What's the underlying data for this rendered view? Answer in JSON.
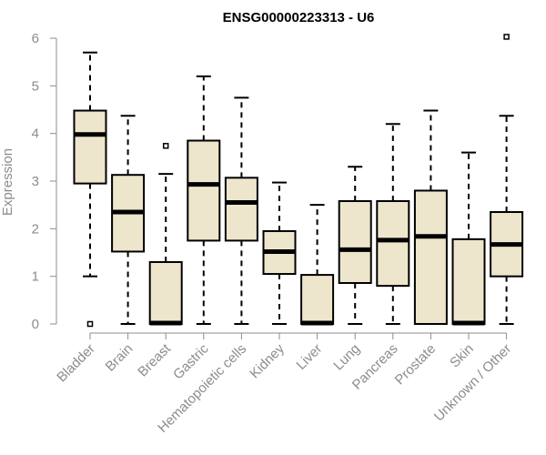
{
  "chart_data": {
    "type": "boxplot",
    "title": "ENSG00000223313 - U6",
    "ylabel": "Expression",
    "xlabel": "",
    "ylim": [
      0,
      6
    ],
    "yticks": [
      0,
      1,
      2,
      3,
      4,
      5,
      6
    ],
    "box_fill": "#ede6cc",
    "stroke": "#000000",
    "axis_color": "#8c8c8c",
    "categories": [
      "Bladder",
      "Brain",
      "Breast",
      "Gastric",
      "Hematopoietic cells",
      "Kidney",
      "Liver",
      "Lung",
      "Pancreas",
      "Prostate",
      "Skin",
      "Unknown / Other"
    ],
    "boxes": [
      {
        "category": "Bladder",
        "whisker_low": 1.0,
        "q1": 2.95,
        "median": 3.98,
        "q3": 4.48,
        "whisker_high": 5.7,
        "outliers": [
          0.0
        ]
      },
      {
        "category": "Brain",
        "whisker_low": 0.0,
        "q1": 1.52,
        "median": 2.35,
        "q3": 3.13,
        "whisker_high": 4.37,
        "outliers": []
      },
      {
        "category": "Breast",
        "whisker_low": 0.0,
        "q1": 0.0,
        "median": 0.02,
        "q3": 1.3,
        "whisker_high": 3.15,
        "outliers": [
          3.74
        ]
      },
      {
        "category": "Gastric",
        "whisker_low": 0.0,
        "q1": 1.75,
        "median": 2.93,
        "q3": 3.85,
        "whisker_high": 5.2,
        "outliers": []
      },
      {
        "category": "Hematopoietic cells",
        "whisker_low": 0.0,
        "q1": 1.75,
        "median": 2.55,
        "q3": 3.07,
        "whisker_high": 4.75,
        "outliers": []
      },
      {
        "category": "Kidney",
        "whisker_low": 0.0,
        "q1": 1.05,
        "median": 1.52,
        "q3": 1.95,
        "whisker_high": 2.97,
        "outliers": []
      },
      {
        "category": "Liver",
        "whisker_low": 0.0,
        "q1": 0.0,
        "median": 0.02,
        "q3": 1.03,
        "whisker_high": 2.5,
        "outliers": []
      },
      {
        "category": "Lung",
        "whisker_low": 0.0,
        "q1": 0.86,
        "median": 1.56,
        "q3": 2.58,
        "whisker_high": 3.3,
        "outliers": []
      },
      {
        "category": "Pancreas",
        "whisker_low": 0.0,
        "q1": 0.8,
        "median": 1.76,
        "q3": 2.58,
        "whisker_high": 4.2,
        "outliers": []
      },
      {
        "category": "Prostate",
        "whisker_low": 0.0,
        "q1": 0.0,
        "median": 1.84,
        "q3": 2.8,
        "whisker_high": 4.48,
        "outliers": []
      },
      {
        "category": "Skin",
        "whisker_low": 0.0,
        "q1": 0.0,
        "median": 0.02,
        "q3": 1.78,
        "whisker_high": 3.6,
        "outliers": []
      },
      {
        "category": "Unknown / Other",
        "whisker_low": 0.0,
        "q1": 1.0,
        "median": 1.67,
        "q3": 2.35,
        "whisker_high": 4.37,
        "outliers": [
          6.03
        ]
      }
    ]
  }
}
